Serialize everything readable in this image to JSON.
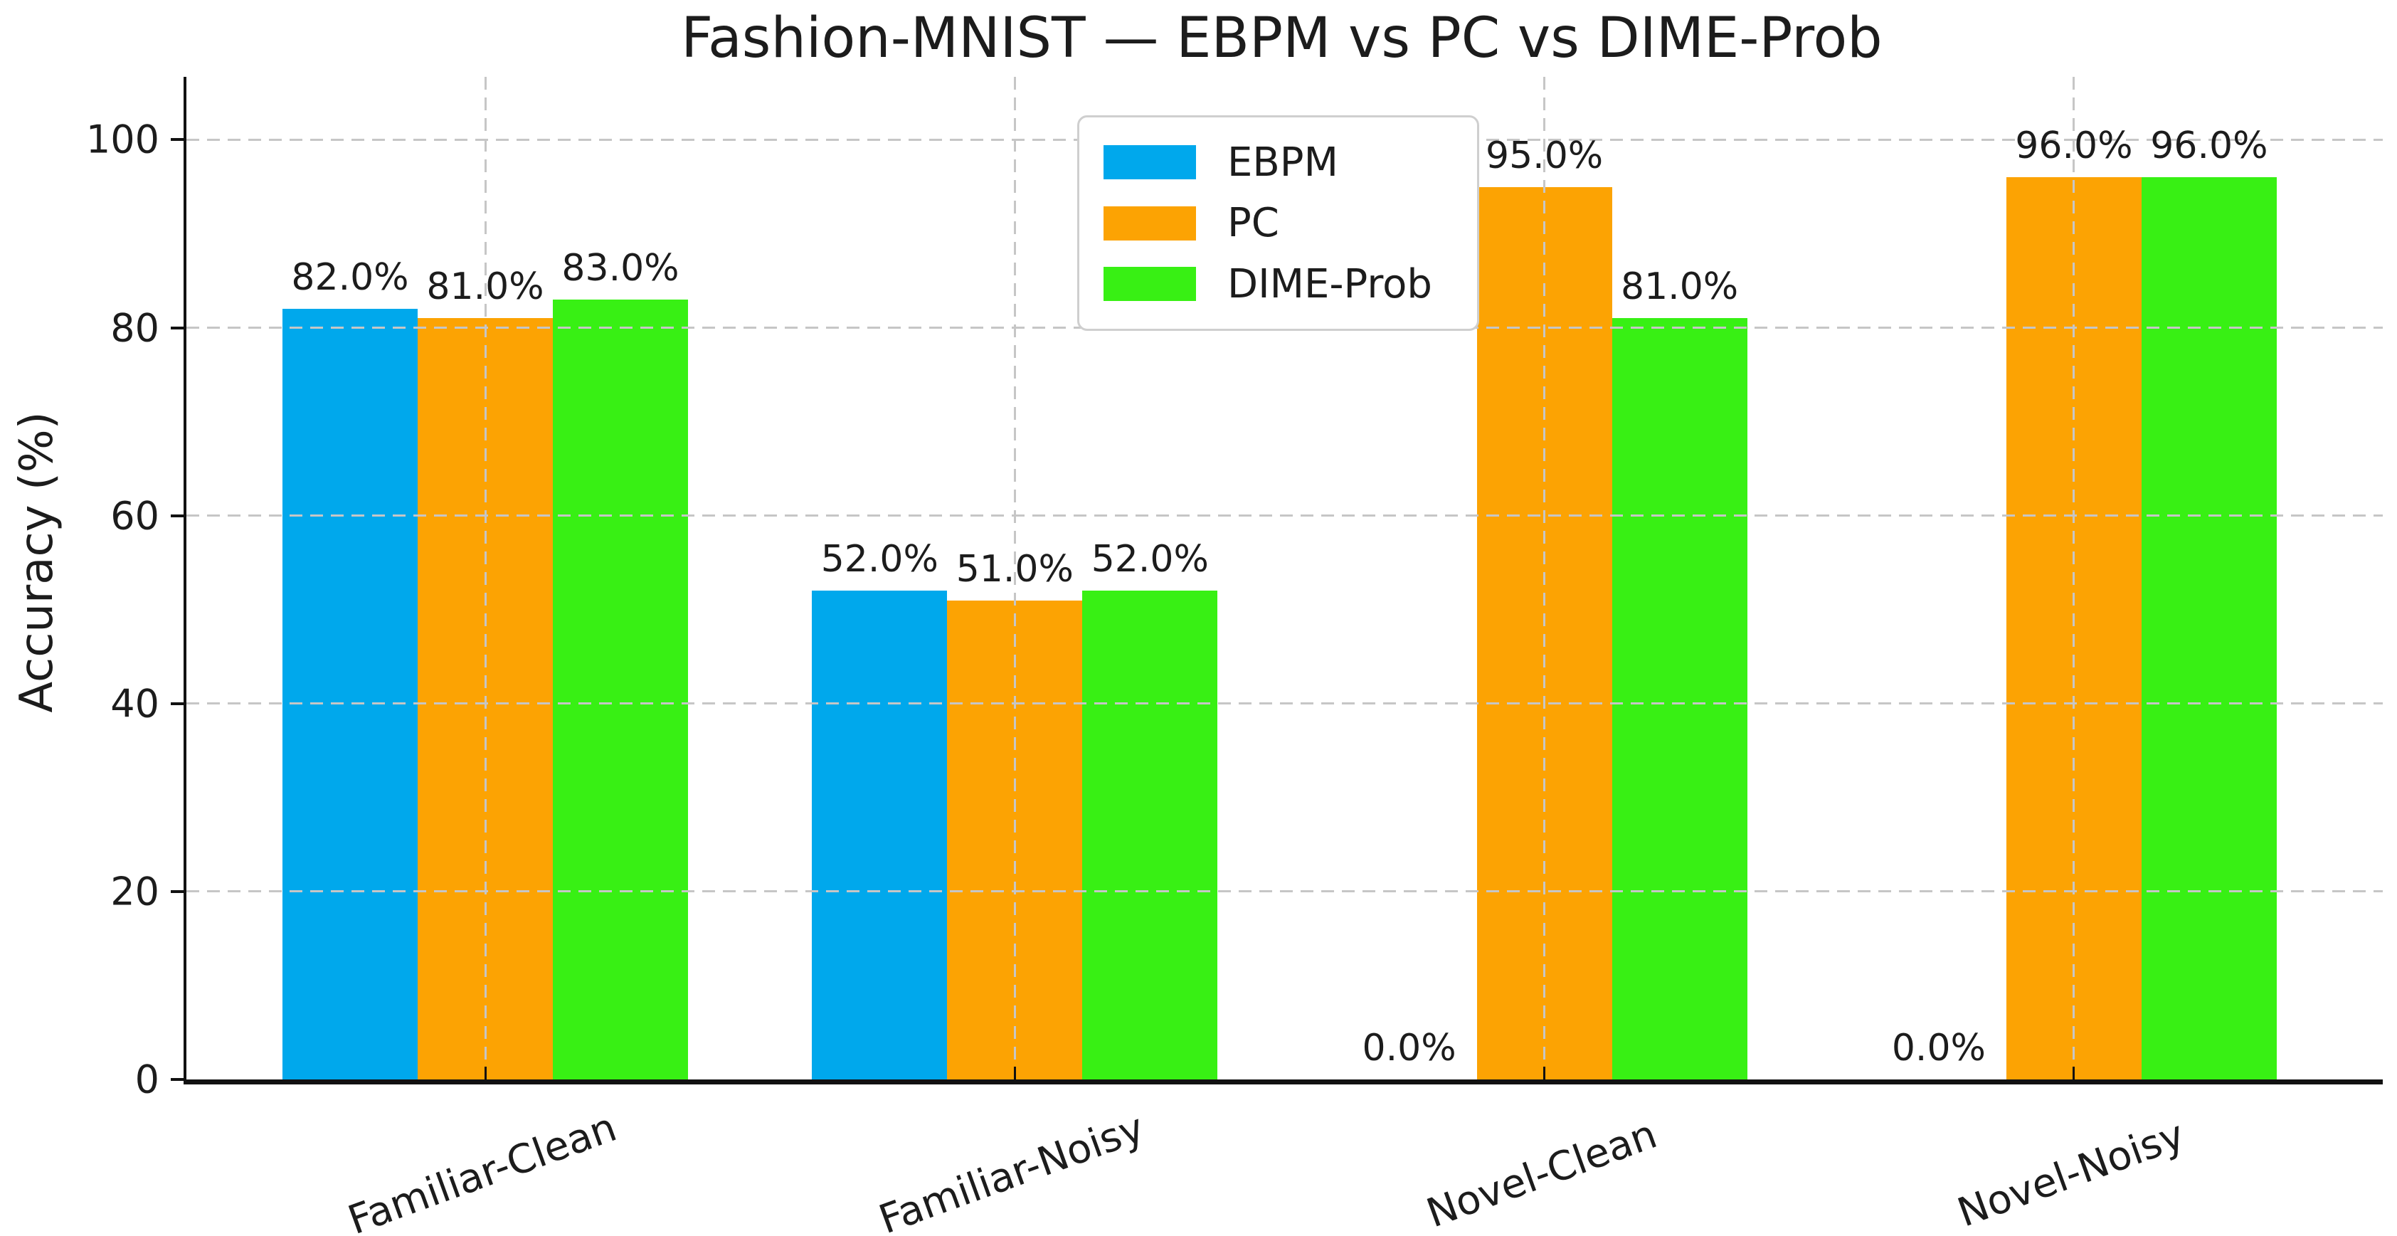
{
  "chart_data": {
    "type": "bar",
    "title": "Fashion-MNIST — EBPM vs PC vs DIME-Prob",
    "ylabel": "Accuracy (%)",
    "xlabel": "",
    "categories": [
      "Familiar-Clean",
      "Familiar-Noisy",
      "Novel-Clean",
      "Novel-Noisy"
    ],
    "series": [
      {
        "name": "EBPM",
        "color": "#00a8ec",
        "values": [
          82.0,
          52.0,
          0.0,
          0.0
        ],
        "labels": [
          "82.0%",
          "52.0%",
          "0.0%",
          "0.0%"
        ]
      },
      {
        "name": "PC",
        "color": "#fca303",
        "values": [
          81.0,
          51.0,
          95.0,
          96.0
        ],
        "labels": [
          "81.0%",
          "51.0%",
          "95.0%",
          "96.0%"
        ]
      },
      {
        "name": "DIME-Prob",
        "color": "#38f014",
        "values": [
          83.0,
          52.0,
          81.0,
          96.0
        ],
        "labels": [
          "83.0%",
          "52.0%",
          "81.0%",
          "96.0%"
        ]
      }
    ],
    "yticks": [
      0,
      20,
      40,
      60,
      80,
      100
    ],
    "ylim": [
      0,
      106.7
    ],
    "grid": true,
    "grid_style": "dashed",
    "legend": {
      "position": "upper center",
      "entries": [
        "EBPM",
        "PC",
        "DIME-Prob"
      ]
    },
    "colors": {
      "grid": "#c6c6c6",
      "text": "#1c1c1c",
      "axis": "#111111",
      "background": "#ffffff"
    }
  }
}
